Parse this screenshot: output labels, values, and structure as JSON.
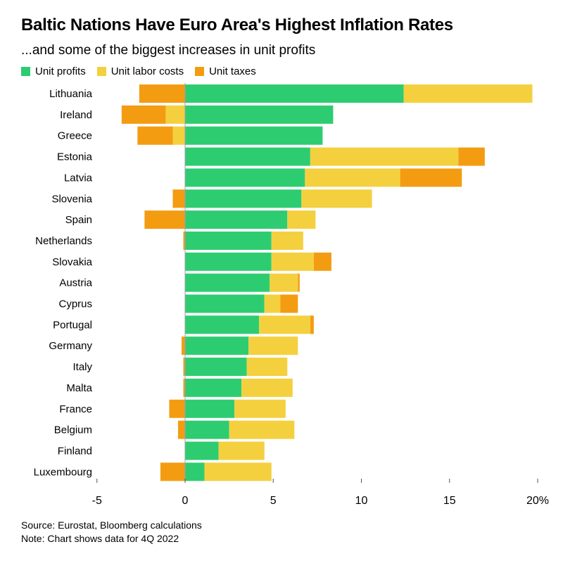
{
  "header": {
    "title": "Baltic Nations Have Euro Area's Highest Inflation Rates",
    "subtitle": "...and some of the biggest increases in unit profits"
  },
  "legend": [
    {
      "label": "Unit profits",
      "color": "#2ecc71"
    },
    {
      "label": "Unit labor costs",
      "color": "#f4d03f"
    },
    {
      "label": "Unit taxes",
      "color": "#f39c12"
    }
  ],
  "footer": {
    "source": "Source: Eurostat, Bloomberg calculations",
    "note": "Note: Chart shows data for 4Q 2022"
  },
  "chart_data": {
    "type": "bar",
    "orientation": "horizontal",
    "stacked": true,
    "categories": [
      "Lithuania",
      "Ireland",
      "Greece",
      "Estonia",
      "Latvia",
      "Slovenia",
      "Spain",
      "Netherlands",
      "Slovakia",
      "Austria",
      "Cyprus",
      "Portugal",
      "Germany",
      "Italy",
      "Malta",
      "France",
      "Belgium",
      "Finland",
      "Luxembourg"
    ],
    "series": [
      {
        "name": "Unit profits",
        "color": "#2ecc71",
        "values": [
          12.4,
          8.4,
          7.8,
          7.1,
          6.8,
          6.6,
          5.8,
          4.9,
          4.9,
          4.8,
          4.5,
          4.2,
          3.6,
          3.5,
          3.2,
          2.8,
          2.5,
          1.9,
          1.1
        ]
      },
      {
        "name": "Unit labor costs",
        "color": "#f4d03f",
        "values": [
          7.3,
          -1.1,
          -0.7,
          8.4,
          5.4,
          4.0,
          1.6,
          1.8,
          2.4,
          1.6,
          0.9,
          2.9,
          2.8,
          2.3,
          2.9,
          2.9,
          3.7,
          2.6,
          3.8
        ]
      },
      {
        "name": "Unit taxes",
        "color": "#f39c12",
        "values": [
          -2.6,
          -2.5,
          -2.0,
          1.5,
          3.5,
          -0.7,
          -2.3,
          -0.1,
          1.0,
          0.1,
          1.0,
          0.2,
          -0.2,
          -0.1,
          -0.1,
          -0.9,
          -0.4,
          0.0,
          -1.4
        ]
      }
    ],
    "x_ticks": [
      "-5",
      "0",
      "5",
      "10",
      "15",
      "20%"
    ],
    "x_tick_values": [
      -5,
      0,
      5,
      10,
      15,
      20
    ],
    "xlim": [
      -5.5,
      20.5
    ],
    "grid": false,
    "legend_position": "top-left"
  }
}
